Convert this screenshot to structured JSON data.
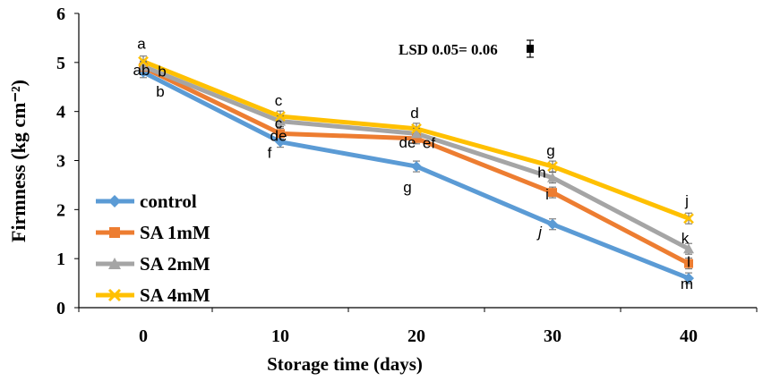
{
  "chart_data": {
    "type": "line",
    "xlabel": "Storage time (days)",
    "ylabel": "Firmness (kg cm⁻²)",
    "ylim": [
      0,
      6
    ],
    "yticks": [
      0,
      1,
      2,
      3,
      4,
      5,
      6
    ],
    "x": [
      0,
      10,
      20,
      30,
      40
    ],
    "lsd_label": "LSD 0.05= 0.06",
    "series": [
      {
        "name": "control",
        "color": "#5B9BD5",
        "marker": "diamond",
        "values": [
          4.8,
          3.38,
          2.88,
          1.7,
          0.6
        ],
        "letters": [
          "b",
          "f",
          "g",
          "j",
          "m"
        ]
      },
      {
        "name": "SA 1mM",
        "color": "#ED7D31",
        "marker": "square",
        "values": [
          4.9,
          3.55,
          3.45,
          2.35,
          0.9
        ],
        "letters": [
          "b",
          "de",
          "de",
          "i",
          "l"
        ]
      },
      {
        "name": "SA 2mM",
        "color": "#A5A5A5",
        "marker": "triangle",
        "values": [
          4.92,
          3.8,
          3.55,
          2.65,
          1.2
        ],
        "letters": [
          "ab",
          "c",
          "ef",
          "h",
          "k"
        ]
      },
      {
        "name": "SA 4mM",
        "color": "#FFC000",
        "marker": "x",
        "values": [
          5.02,
          3.9,
          3.65,
          2.88,
          1.82
        ],
        "letters": [
          "a",
          "c",
          "d",
          "g",
          "j"
        ]
      }
    ]
  }
}
